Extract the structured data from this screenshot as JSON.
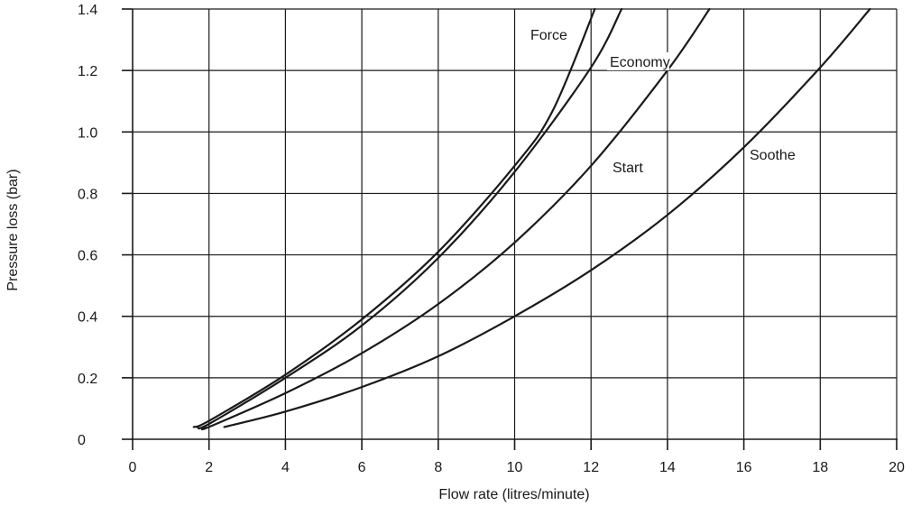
{
  "chart_data": {
    "type": "line",
    "title": "",
    "xlabel": "Flow rate (litres/minute)",
    "ylabel": "Pressure loss (bar)",
    "xlim": [
      0,
      20
    ],
    "ylim": [
      0,
      1.4
    ],
    "x_ticks": [
      0,
      2,
      4,
      6,
      8,
      10,
      12,
      14,
      16,
      18,
      20
    ],
    "x_tick_labels": [
      "0",
      "2",
      "4",
      "6",
      "8",
      "10",
      "12",
      "14",
      "16",
      "18",
      "20"
    ],
    "y_ticks": [
      0,
      0.2,
      0.4,
      0.6,
      0.8,
      1.0,
      1.2,
      1.4
    ],
    "y_tick_labels": [
      "0",
      "0.2",
      "0.4",
      "0.6",
      "0.8",
      "1.0",
      "1.2",
      "1.4"
    ],
    "grid": true,
    "legend": "none",
    "series": [
      {
        "name": "Force",
        "x": [
          1.6,
          2,
          4,
          6,
          8,
          10,
          11,
          12.1
        ],
        "y": [
          0.04,
          0.06,
          0.21,
          0.39,
          0.61,
          0.89,
          1.07,
          1.4
        ]
      },
      {
        "name": "Economy",
        "x": [
          1.7,
          2,
          4,
          6,
          8,
          10,
          12,
          12.8
        ],
        "y": [
          0.04,
          0.05,
          0.2,
          0.37,
          0.59,
          0.87,
          1.21,
          1.4
        ]
      },
      {
        "name": "Start",
        "x": [
          1.9,
          2,
          4,
          6,
          8,
          10,
          12,
          14,
          15.1
        ],
        "y": [
          0.04,
          0.04,
          0.15,
          0.28,
          0.44,
          0.64,
          0.89,
          1.2,
          1.4
        ]
      },
      {
        "name": "Soothe",
        "x": [
          2.4,
          4,
          6,
          8,
          10,
          12,
          14,
          16,
          18,
          19.3
        ],
        "y": [
          0.04,
          0.09,
          0.17,
          0.27,
          0.4,
          0.55,
          0.73,
          0.95,
          1.21,
          1.4
        ]
      }
    ]
  }
}
